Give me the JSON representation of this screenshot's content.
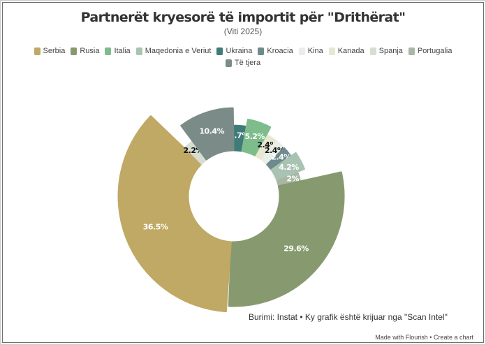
{
  "chart_data": {
    "type": "pie",
    "title": "Partnerët kryesorë të importit për \"Drithërat\"",
    "subtitle": "(Viti 2025)",
    "categories": [
      "Serbia",
      "Rusia",
      "Italia",
      "Maqedonia e Veriut",
      "Ukraina",
      "Kroacia",
      "Kina",
      "Kanada",
      "Spanja",
      "Portugalia",
      "Të tjera"
    ],
    "values": [
      36.5,
      29.6,
      5.2,
      4.2,
      2.7,
      2.4,
      2.4,
      2.4,
      2.2,
      2.0,
      10.4
    ],
    "value_labels": [
      "36.5%",
      "29.6%",
      "5.2%",
      "4.2%",
      "2.7%",
      "2.4%",
      "2.4%",
      "2.4%",
      "2.2%",
      "2%",
      "10.4%"
    ],
    "colors": [
      "#bfa964",
      "#879a6f",
      "#7fbc8b",
      "#a9c3b3",
      "#3f7b79",
      "#6f8a8c",
      "#e9efe8",
      "#e6e8d2",
      "#d6ddd1",
      "#a9b7a4",
      "#7b8c88"
    ],
    "label_colors": [
      "#ffffff",
      "#ffffff",
      "#ffffff",
      "#ffffff",
      "#ffffff",
      "#ffffff",
      "#111111",
      "#111111",
      "#111111",
      "#ffffff",
      "#ffffff"
    ],
    "draw_order": [
      4,
      2,
      7,
      6,
      5,
      3,
      9,
      1,
      0,
      8,
      10
    ],
    "inner_radius_ratio": 0.4,
    "legend_placement": "top"
  },
  "footer": {
    "source": "Burimi: Instat • Ky grafik është krijuar nga \"Scan Intel\"",
    "credit": "Made with Flourish • Create a chart"
  }
}
